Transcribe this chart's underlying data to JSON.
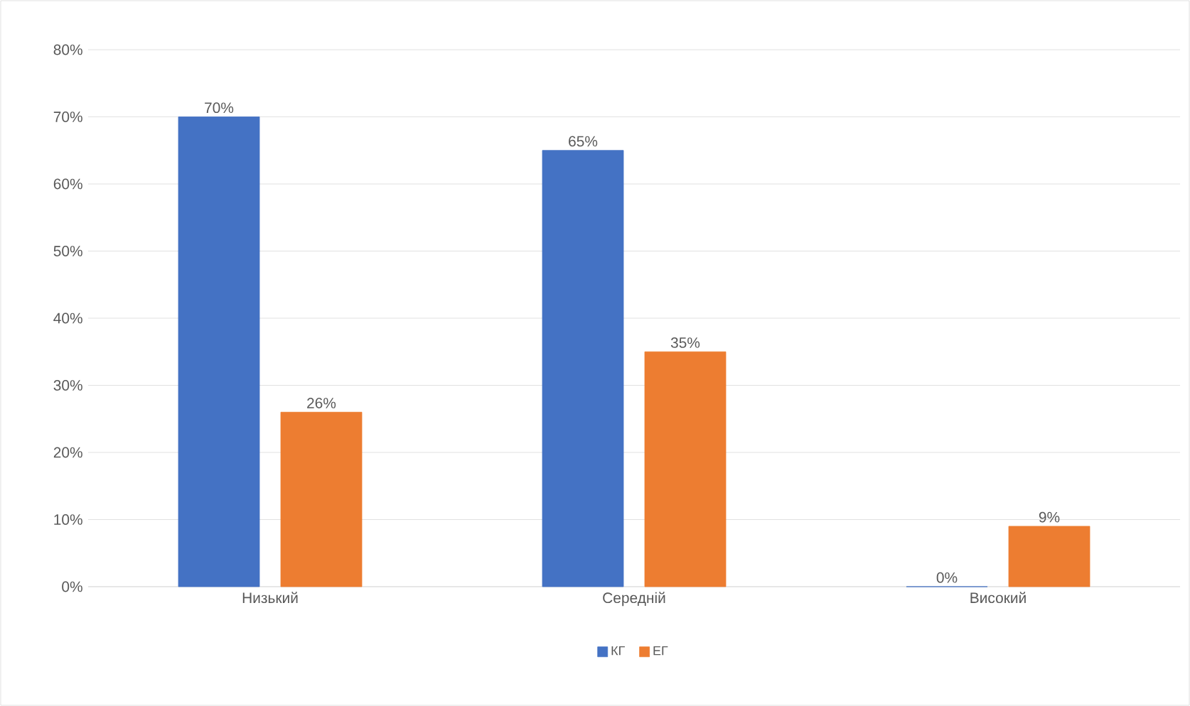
{
  "chart_data": {
    "type": "bar",
    "categories": [
      "Низький",
      "Середній",
      "Високий"
    ],
    "series": [
      {
        "name": "КГ",
        "color": "#4472c4",
        "values": [
          70,
          65,
          0
        ],
        "value_labels": [
          "70%",
          "65%",
          "0%"
        ]
      },
      {
        "name": "ЕГ",
        "color": "#ed7d31",
        "values": [
          26,
          35,
          9
        ],
        "value_labels": [
          "26%",
          "35%",
          "9%"
        ]
      }
    ],
    "ylim": [
      0,
      80
    ],
    "yticks": [
      {
        "value": 0,
        "label": "0%"
      },
      {
        "value": 10,
        "label": "10%"
      },
      {
        "value": 20,
        "label": "20%"
      },
      {
        "value": 30,
        "label": "30%"
      },
      {
        "value": 40,
        "label": "40%"
      },
      {
        "value": 50,
        "label": "50%"
      },
      {
        "value": 60,
        "label": "60%"
      },
      {
        "value": 70,
        "label": "70%"
      },
      {
        "value": 80,
        "label": "80%"
      }
    ],
    "grid": "y",
    "legend": "bottom"
  }
}
